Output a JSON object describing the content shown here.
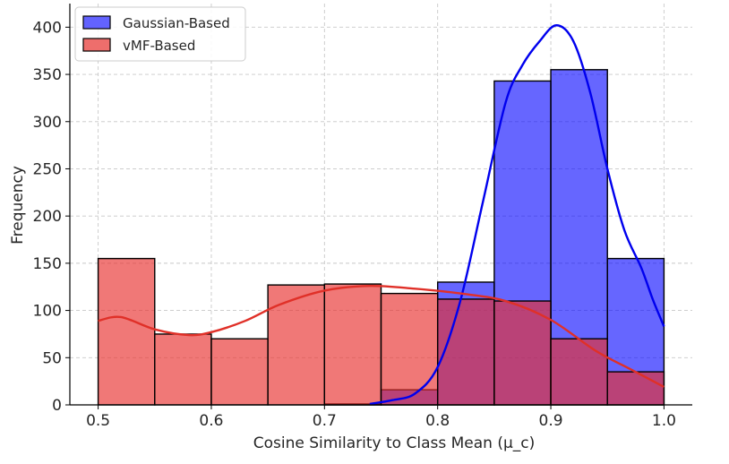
{
  "chart_data": {
    "type": "histogram",
    "title": "",
    "xlabel": "Cosine Similarity to Class Mean (μ_c)",
    "ylabel": "Frequency",
    "xlim": [
      0.475,
      1.025
    ],
    "ylim": [
      0,
      425
    ],
    "xticks": [
      0.5,
      0.6,
      0.7,
      0.8,
      0.9,
      1.0
    ],
    "xtick_labels": [
      "0.5",
      "0.6",
      "0.7",
      "0.8",
      "0.9",
      "1.0"
    ],
    "yticks": [
      0,
      50,
      100,
      150,
      200,
      250,
      300,
      350,
      400
    ],
    "ytick_labels": [
      "0",
      "50",
      "100",
      "150",
      "200",
      "250",
      "300",
      "350",
      "400"
    ],
    "grid": true,
    "legend_position": "top-left",
    "bin_edges": [
      0.5,
      0.55,
      0.6,
      0.65,
      0.7,
      0.75,
      0.8,
      0.85,
      0.9,
      0.95,
      1.0
    ],
    "series": [
      {
        "name": "Gaussian-Based",
        "color": "#0000ff",
        "counts": [
          0,
          0,
          0,
          0,
          1,
          16,
          130,
          343,
          355,
          155
        ],
        "kde": [
          [
            0.74,
            1
          ],
          [
            0.76,
            5
          ],
          [
            0.78,
            12
          ],
          [
            0.8,
            40
          ],
          [
            0.82,
            110
          ],
          [
            0.84,
            215
          ],
          [
            0.86,
            320
          ],
          [
            0.875,
            360
          ],
          [
            0.89,
            385
          ],
          [
            0.905,
            402
          ],
          [
            0.92,
            385
          ],
          [
            0.935,
            330
          ],
          [
            0.95,
            250
          ],
          [
            0.965,
            185
          ],
          [
            0.98,
            145
          ],
          [
            0.99,
            112
          ],
          [
            1.0,
            83
          ]
        ]
      },
      {
        "name": "vMF-Based",
        "color": "#e8423f",
        "counts": [
          155,
          75,
          70,
          127,
          128,
          118,
          112,
          110,
          70,
          35
        ],
        "kde": [
          [
            0.5,
            89
          ],
          [
            0.52,
            93
          ],
          [
            0.55,
            80
          ],
          [
            0.58,
            74
          ],
          [
            0.6,
            77
          ],
          [
            0.63,
            89
          ],
          [
            0.66,
            106
          ],
          [
            0.7,
            121
          ],
          [
            0.74,
            126
          ],
          [
            0.78,
            123
          ],
          [
            0.82,
            118
          ],
          [
            0.86,
            110
          ],
          [
            0.9,
            90
          ],
          [
            0.94,
            57
          ],
          [
            0.97,
            38
          ],
          [
            1.0,
            19
          ]
        ]
      }
    ]
  }
}
